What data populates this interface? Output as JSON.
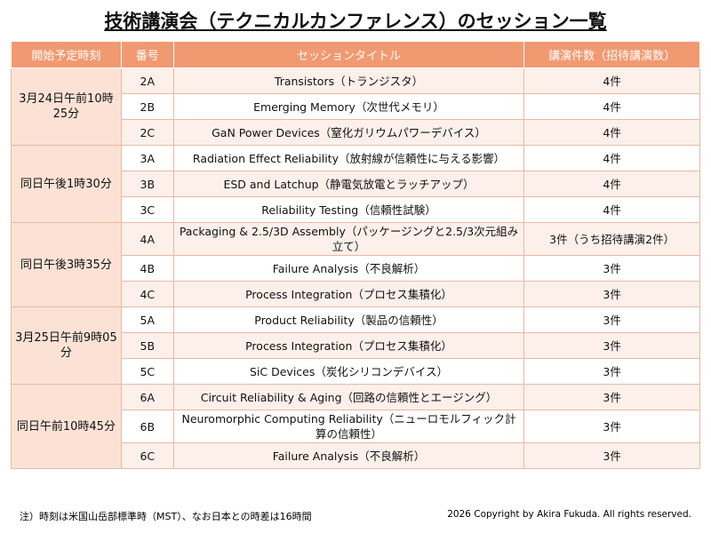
{
  "header": {
    "title": "技術講演会（テクニカルカンファレンス）のセッション一覧"
  },
  "table": {
    "headers": [
      "開始予定時刻",
      "番号",
      "セッションタイトル",
      "講演件数（招待講演数）"
    ],
    "groups": [
      {
        "time": "3月24日午前10時25分",
        "sessions": [
          {
            "number": "2A",
            "title": "Transistors（トランジスタ）",
            "count": "4件"
          },
          {
            "number": "2B",
            "title": "Emerging Memory（次世代メモリ）",
            "count": "4件"
          },
          {
            "number": "2C",
            "title": "GaN Power Devices（窒化ガリウムパワーデバイス）",
            "count": "4件"
          }
        ]
      },
      {
        "time": "同日午後1時30分",
        "sessions": [
          {
            "number": "3A",
            "title": "Radiation Effect Reliability（放射線が信頼性に与える影響）",
            "count": "4件"
          },
          {
            "number": "3B",
            "title": "ESD and Latchup（静電気放電とラッチアップ）",
            "count": "4件"
          },
          {
            "number": "3C",
            "title": "Reliability Testing（信頼性試験）",
            "count": "4件"
          }
        ]
      },
      {
        "time": "同日午後3時35分",
        "sessions": [
          {
            "number": "4A",
            "title": "Packaging & 2.5/3D Assembly（パッケージングと2.5/3次元組み立て）",
            "count": "3件（うち招待講演2件）"
          },
          {
            "number": "4B",
            "title": "Failure Analysis（不良解析）",
            "count": "3件"
          },
          {
            "number": "4C",
            "title": "Process Integration（プロセス集積化）",
            "count": "3件"
          }
        ]
      },
      {
        "time": "3月25日午前9時05分",
        "sessions": [
          {
            "number": "5A",
            "title": "Product Reliability（製品の信頼性）",
            "count": "3件"
          },
          {
            "number": "5B",
            "title": "Process Integration（プロセス集積化）",
            "count": "3件"
          },
          {
            "number": "5C",
            "title": "SiC Devices（炭化シリコンデバイス）",
            "count": "3件"
          }
        ]
      },
      {
        "time": "同日午前10時45分",
        "sessions": [
          {
            "number": "6A",
            "title": "Circuit Reliability & Aging（回路の信頼性とエージング）",
            "count": "3件"
          },
          {
            "number": "6B",
            "title": "Neuromorphic Computing Reliability（ニューロモルフィック計算の信頼性）",
            "count": "3件"
          },
          {
            "number": "6C",
            "title": "Failure Analysis（不良解析）",
            "count": "3件"
          }
        ]
      }
    ]
  },
  "footer": {
    "note": "注）時刻は米国山岳部標準時（MST）、なお日本との時差は16時間",
    "copyright": "2026 Copyright by Akira Fukuda.  All rights reserved."
  }
}
